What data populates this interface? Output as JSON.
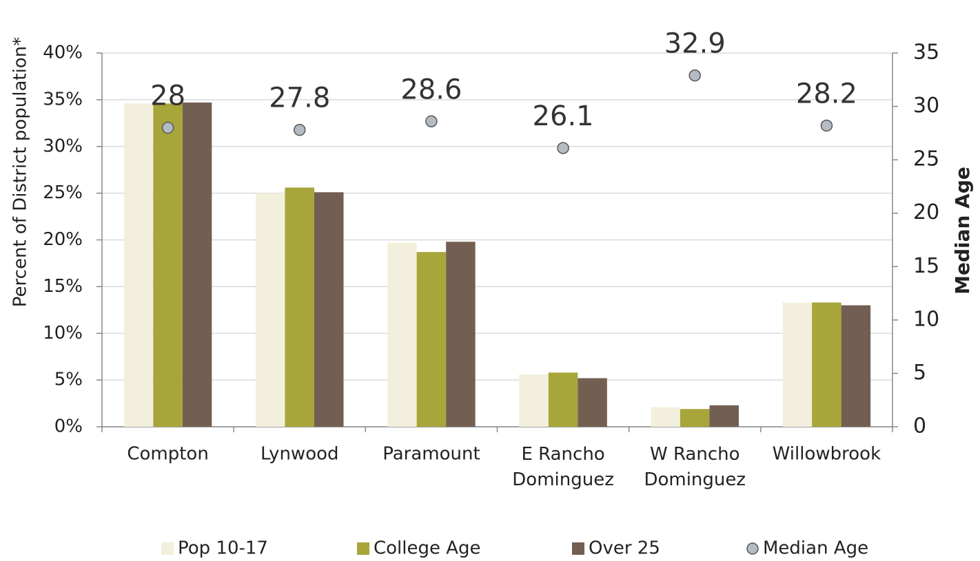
{
  "chart_data": {
    "type": "bar",
    "categories": [
      "Compton",
      "Lynwood",
      "Paramount",
      "E Rancho\nDominguez",
      "W Rancho\nDominguez",
      "Willowbrook"
    ],
    "series": [
      {
        "name": "Pop 10-17",
        "color": "#f2efdc",
        "values": [
          34.6,
          25.0,
          19.7,
          5.6,
          2.1,
          13.3
        ]
      },
      {
        "name": "College Age",
        "color": "#a8a53a",
        "values": [
          34.6,
          25.6,
          18.7,
          5.8,
          1.9,
          13.3
        ]
      },
      {
        "name": "Over 25",
        "color": "#735f52",
        "values": [
          34.7,
          25.1,
          19.8,
          5.2,
          2.3,
          13.0
        ]
      },
      {
        "name": "Median Age",
        "type": "scatter",
        "axis": "y2",
        "color": "#b3bcc4",
        "values": [
          28,
          27.8,
          28.6,
          26.1,
          32.9,
          28.2
        ]
      }
    ],
    "y_label": "Percent of District population*",
    "y2_label": "Median Age",
    "ylim": [
      0,
      40
    ],
    "yticks": [
      {
        "value": 0,
        "label": "0%"
      },
      {
        "value": 5,
        "label": "5%"
      },
      {
        "value": 10,
        "label": "10%"
      },
      {
        "value": 15,
        "label": "15%"
      },
      {
        "value": 20,
        "label": "20%"
      },
      {
        "value": 25,
        "label": "25%"
      },
      {
        "value": 30,
        "label": "30%"
      },
      {
        "value": 35,
        "label": "35%"
      },
      {
        "value": 40,
        "label": "40%"
      }
    ],
    "y2lim": [
      0,
      35
    ],
    "y2ticks": [
      0,
      5,
      10,
      15,
      20,
      25,
      30,
      35
    ],
    "grid": true,
    "legend": "bottom"
  }
}
